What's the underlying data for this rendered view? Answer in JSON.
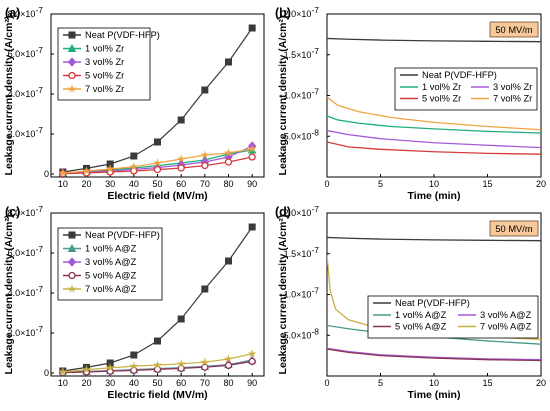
{
  "chart_data": [
    {
      "panel": "(a)",
      "type": "line",
      "xlabel": "Electric field (MV/m)",
      "ylabel": "Leakage current density (A/cm²)",
      "x": [
        10,
        20,
        30,
        40,
        50,
        60,
        70,
        80,
        90
      ],
      "xticks": [
        "10",
        "20",
        "30",
        "40",
        "50",
        "60",
        "70",
        "80",
        "90"
      ],
      "ylim": [
        0,
        8e-07
      ],
      "yticks": [
        {
          "v": 0,
          "label": "0",
          "exp": ""
        },
        {
          "v": 2e-07,
          "label": "2.0×10",
          "exp": "-7"
        },
        {
          "v": 4e-07,
          "label": "4.0×10",
          "exp": "-7"
        },
        {
          "v": 6e-07,
          "label": "6.0×10",
          "exp": "-7"
        },
        {
          "v": 8e-07,
          "label": "8.0×10",
          "exp": "-7"
        }
      ],
      "legend_position": "top-left",
      "series": [
        {
          "name": "Neat P(VDF-HFP)",
          "color": "#3a3a3a",
          "marker": "square",
          "values": [
            1e-08,
            2.8e-08,
            5e-08,
            9e-08,
            1.6e-07,
            2.7e-07,
            4.2e-07,
            5.6e-07,
            7.3e-07
          ]
        },
        {
          "name": "1 vol% Zr",
          "color": "#1fae7a",
          "marker": "triangle",
          "values": [
            5e-09,
            1.2e-08,
            2e-08,
            3e-08,
            4.2e-08,
            5.5e-08,
            7e-08,
            1e-07,
            1.2e-07
          ]
        },
        {
          "name": "3 vol% Zr",
          "color": "#a35ad8",
          "marker": "diamond",
          "values": [
            3e-09,
            8e-09,
            1.5e-08,
            2.3e-08,
            3.2e-08,
            4.5e-08,
            6e-08,
            8.5e-08,
            1.4e-07
          ]
        },
        {
          "name": "5 vol% Zr",
          "color": "#d63a3a",
          "marker": "circle",
          "values": [
            2e-09,
            5e-09,
            1e-08,
            1.5e-08,
            2.2e-08,
            3e-08,
            4.2e-08,
            6e-08,
            8.5e-08
          ]
        },
        {
          "name": "7 vol% Zr",
          "color": "#f0a340",
          "marker": "star",
          "values": [
            4e-09,
            1.5e-08,
            2.5e-08,
            3.6e-08,
            5.5e-08,
            7.5e-08,
            9.5e-08,
            1.05e-07,
            1.25e-07
          ]
        }
      ]
    },
    {
      "panel": "(b)",
      "type": "line",
      "xlabel": "Time (min)",
      "ylabel": "Leakage current density (A/cm²)",
      "annotation": "50 MV/m",
      "xlim": [
        0,
        20
      ],
      "xticks": [
        "0",
        "5",
        "10",
        "15",
        "20"
      ],
      "ylim": [
        0,
        2e-07
      ],
      "yticks": [
        {
          "v": 5e-08,
          "label": "5.0×10",
          "exp": "-8"
        },
        {
          "v": 1e-07,
          "label": "1.0×10",
          "exp": "-7"
        },
        {
          "v": 1.5e-07,
          "label": "1.5×10",
          "exp": "-7"
        },
        {
          "v": 2e-07,
          "label": "2.0×10",
          "exp": "-7"
        }
      ],
      "legend_position": "center",
      "series": [
        {
          "name": "Neat P(VDF-HFP)",
          "color": "#3a3a3a",
          "points": [
            [
              0,
              1.7e-07
            ],
            [
              2,
              1.69e-07
            ],
            [
              5,
              1.68e-07
            ],
            [
              10,
              1.67e-07
            ],
            [
              15,
              1.665e-07
            ],
            [
              20,
              1.66e-07
            ]
          ]
        },
        {
          "name": "1 vol% Zr",
          "color": "#1fae7a",
          "points": [
            [
              0,
              7.5e-08
            ],
            [
              1,
              7e-08
            ],
            [
              3,
              6.6e-08
            ],
            [
              6,
              6.2e-08
            ],
            [
              10,
              5.9e-08
            ],
            [
              15,
              5.6e-08
            ],
            [
              20,
              5.4e-08
            ]
          ]
        },
        {
          "name": "3 vol% Zr",
          "color": "#a35ad8",
          "points": [
            [
              0,
              5.7e-08
            ],
            [
              2,
              5.2e-08
            ],
            [
              5,
              4.7e-08
            ],
            [
              10,
              4.2e-08
            ],
            [
              15,
              3.9e-08
            ],
            [
              20,
              3.6e-08
            ]
          ]
        },
        {
          "name": "5 vol% Zr",
          "color": "#d63a3a",
          "points": [
            [
              0,
              4.3e-08
            ],
            [
              2,
              3.7e-08
            ],
            [
              5,
              3.4e-08
            ],
            [
              10,
              3.1e-08
            ],
            [
              15,
              2.9e-08
            ],
            [
              20,
              2.8e-08
            ]
          ]
        },
        {
          "name": "7 vol% Zr",
          "color": "#f0a340",
          "points": [
            [
              0,
              9.8e-08
            ],
            [
              1,
              8.8e-08
            ],
            [
              3,
              8e-08
            ],
            [
              6,
              7.3e-08
            ],
            [
              10,
              6.7e-08
            ],
            [
              15,
              6.2e-08
            ],
            [
              20,
              5.8e-08
            ]
          ]
        }
      ]
    },
    {
      "panel": "(c)",
      "type": "line",
      "xlabel": "Electric field (MV/m)",
      "ylabel": "Leakage current density (A/cm²)",
      "x": [
        10,
        20,
        30,
        40,
        50,
        60,
        70,
        80,
        90
      ],
      "xticks": [
        "10",
        "20",
        "30",
        "40",
        "50",
        "60",
        "70",
        "80",
        "90"
      ],
      "ylim": [
        0,
        8e-07
      ],
      "yticks": [
        {
          "v": 0,
          "label": "0",
          "exp": ""
        },
        {
          "v": 2e-07,
          "label": "2.0×10",
          "exp": "-7"
        },
        {
          "v": 4e-07,
          "label": "4.0×10",
          "exp": "-7"
        },
        {
          "v": 6e-07,
          "label": "6.0×10",
          "exp": "-7"
        },
        {
          "v": 8e-07,
          "label": "8.0×10",
          "exp": "-7"
        }
      ],
      "legend_position": "top-left",
      "series": [
        {
          "name": "Neat P(VDF-HFP)",
          "color": "#3a3a3a",
          "marker": "square",
          "values": [
            1e-08,
            2.8e-08,
            5e-08,
            9e-08,
            1.6e-07,
            2.7e-07,
            4.2e-07,
            5.6e-07,
            7.3e-07
          ]
        },
        {
          "name": "1 vol% A@Z",
          "color": "#4a9a8c",
          "marker": "triangle",
          "values": [
            3e-09,
            8e-09,
            1.2e-08,
            1.7e-08,
            2.2e-08,
            2.7e-08,
            3.3e-08,
            4.2e-08,
            6.5e-08
          ]
        },
        {
          "name": "3 vol% A@Z",
          "color": "#a35ad8",
          "marker": "diamond",
          "values": [
            2e-09,
            6e-09,
            1e-08,
            1.4e-08,
            1.9e-08,
            2.4e-08,
            3e-08,
            4e-08,
            6e-08
          ]
        },
        {
          "name": "5 vol% A@Z",
          "color": "#8a3550",
          "marker": "circle",
          "values": [
            2e-09,
            5e-09,
            9e-09,
            1.3e-08,
            1.8e-08,
            2.3e-08,
            2.9e-08,
            3.8e-08,
            5.8e-08
          ]
        },
        {
          "name": "7 vol% A@Z",
          "color": "#c8b040",
          "marker": "star",
          "values": [
            5e-09,
            1.7e-08,
            2.6e-08,
            3.4e-08,
            4e-08,
            4.6e-08,
            5.4e-08,
            7e-08,
            9.6e-08
          ]
        }
      ]
    },
    {
      "panel": "(d)",
      "type": "line",
      "xlabel": "Time (min)",
      "ylabel": "Leakage current density (A/cm²)",
      "annotation": "50 MV/m",
      "xlim": [
        0,
        20
      ],
      "xticks": [
        "0",
        "5",
        "10",
        "15",
        "20"
      ],
      "ylim": [
        0,
        2e-07
      ],
      "yticks": [
        {
          "v": 5e-08,
          "label": "5.0×10",
          "exp": "-8"
        },
        {
          "v": 1e-07,
          "label": "1.0×10",
          "exp": "-7"
        },
        {
          "v": 1.5e-07,
          "label": "1.5×10",
          "exp": "-7"
        },
        {
          "v": 2e-07,
          "label": "2.0×10",
          "exp": "-7"
        }
      ],
      "legend_position": "center",
      "series": [
        {
          "name": "Neat P(VDF-HFP)",
          "color": "#3a3a3a",
          "points": [
            [
              0,
              1.7e-07
            ],
            [
              2,
              1.69e-07
            ],
            [
              5,
              1.68e-07
            ],
            [
              10,
              1.67e-07
            ],
            [
              15,
              1.665e-07
            ],
            [
              20,
              1.66e-07
            ]
          ]
        },
        {
          "name": "1 vol% A@Z",
          "color": "#4a9a8c",
          "points": [
            [
              0,
              6.2e-08
            ],
            [
              2,
              5.8e-08
            ],
            [
              5,
              5.3e-08
            ],
            [
              10,
              4.8e-08
            ],
            [
              15,
              4.3e-08
            ],
            [
              20,
              3.9e-08
            ]
          ]
        },
        {
          "name": "3 vol% A@Z",
          "color": "#a35ad8",
          "points": [
            [
              0,
              3.4e-08
            ],
            [
              2,
              3e-08
            ],
            [
              5,
              2.6e-08
            ],
            [
              10,
              2.3e-08
            ],
            [
              15,
              2.1e-08
            ],
            [
              20,
              2e-08
            ]
          ]
        },
        {
          "name": "5 vol% A@Z",
          "color": "#8a3550",
          "points": [
            [
              0,
              3.3e-08
            ],
            [
              2,
              2.9e-08
            ],
            [
              5,
              2.5e-08
            ],
            [
              10,
              2.2e-08
            ],
            [
              15,
              2e-08
            ],
            [
              20,
              1.9e-08
            ]
          ]
        },
        {
          "name": "7 vol% A@Z",
          "color": "#c8b040",
          "points": [
            [
              0,
              1.48e-07
            ],
            [
              0.3,
              1.05e-07
            ],
            [
              0.8,
              8.2e-08
            ],
            [
              2,
              6.9e-08
            ],
            [
              5,
              5.8e-08
            ],
            [
              10,
              5.2e-08
            ],
            [
              15,
              4.8e-08
            ],
            [
              20,
              4.5e-08
            ]
          ]
        }
      ]
    }
  ]
}
